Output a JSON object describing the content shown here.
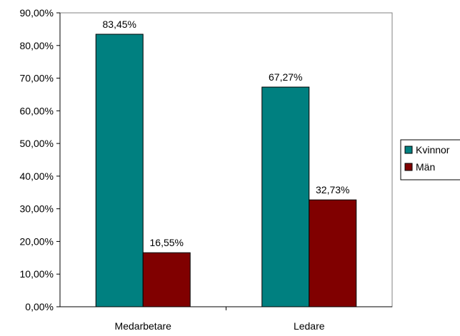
{
  "chart_data": {
    "type": "bar",
    "categories": [
      "Medarbetare",
      "Ledare"
    ],
    "series": [
      {
        "name": "Kvinnor",
        "values": [
          83.45,
          67.27
        ],
        "labels": [
          "83,45%",
          "67,27%"
        ],
        "color": "#008080"
      },
      {
        "name": "Män",
        "values": [
          16.55,
          32.73
        ],
        "labels": [
          "16,55%",
          "32,73%"
        ],
        "color": "#800000"
      }
    ],
    "y_ticks": [
      "0,00%",
      "10,00%",
      "20,00%",
      "30,00%",
      "40,00%",
      "50,00%",
      "60,00%",
      "70,00%",
      "80,00%",
      "90,00%"
    ],
    "ylim": [
      0,
      90
    ],
    "legend_position": "right",
    "grid": false
  }
}
